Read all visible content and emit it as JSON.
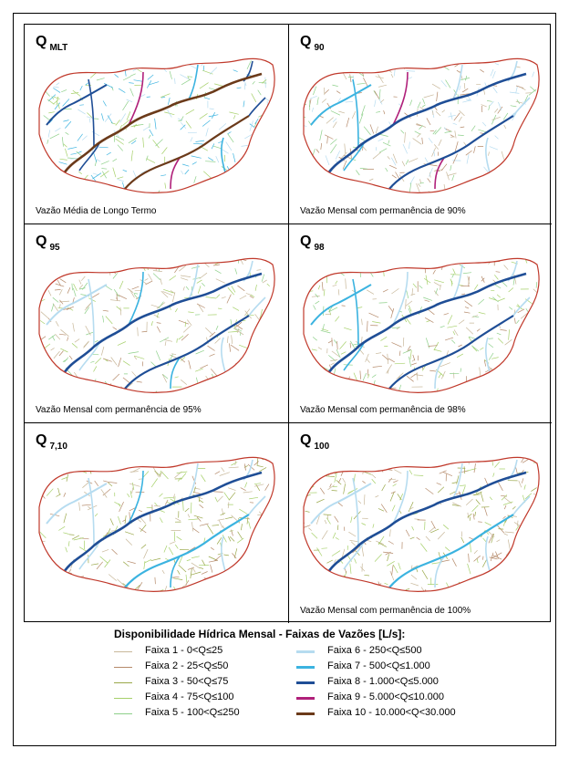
{
  "panels": [
    {
      "q": "Q",
      "sub": "MLT",
      "caption": "Vazão Média de Longo Termo"
    },
    {
      "q": "Q",
      "sub": "90",
      "caption": "Vazão Mensal com permanência de 90%"
    },
    {
      "q": "Q",
      "sub": "95",
      "caption": "Vazão Mensal com permanência de 95%"
    },
    {
      "q": "Q",
      "sub": "98",
      "caption": "Vazão Mensal com permanência de 98%"
    },
    {
      "q": "Q",
      "sub": "7,10",
      "caption": ""
    },
    {
      "q": "Q",
      "sub": "100",
      "caption": "Vazão Mensal com permanência de 100%"
    }
  ],
  "legend": {
    "title": "Disponibilidade Hídrica Mensal - Faixas de Vazões [L/s]:",
    "items": [
      {
        "label": "Faixa 1  - 0<Q≤25",
        "color": "#c8b89a"
      },
      {
        "label": "Faixa 2  - 25<Q≤50",
        "color": "#b58a6a"
      },
      {
        "label": "Faixa 3  - 50<Q≤75",
        "color": "#9aa84a"
      },
      {
        "label": "Faixa 4  - 75<Q≤100",
        "color": "#a6d06a"
      },
      {
        "label": "Faixa 5  - 100<Q≤250",
        "color": "#8ed08a"
      },
      {
        "label": "Faixa 6  - 250<Q≤500",
        "color": "#b6dcf0"
      },
      {
        "label": "Faixa 7  - 500<Q≤1.000",
        "color": "#3bb3e0"
      },
      {
        "label": "Faixa 8  - 1.000<Q≤5.000",
        "color": "#1f4e96"
      },
      {
        "label": "Faixa 9  - 5.000<Q≤10.000",
        "color": "#b0207a"
      },
      {
        "label": "Faixa 10 - 10.000<Q<30.000",
        "color": "#6b3a1a"
      }
    ]
  },
  "colors": {
    "boundary": "#c0392b"
  }
}
